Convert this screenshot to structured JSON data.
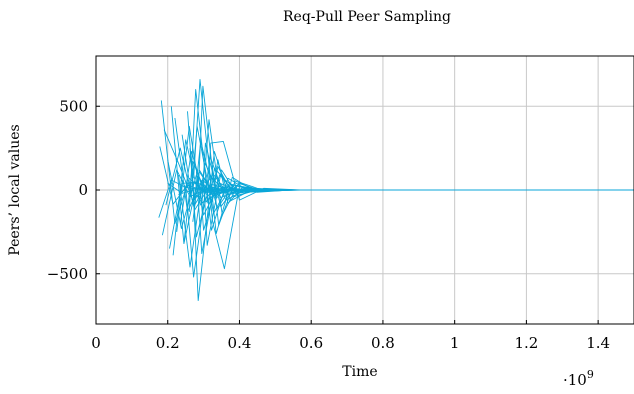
{
  "chart_data": {
    "type": "line",
    "title": "Req-Pull Peer Sampling",
    "xlabel": "Time",
    "ylabel": "Peers’ local values",
    "x_scale_label": "·10",
    "x_scale_exponent": "9",
    "xlim": [
      0,
      1500000000
    ],
    "ylim": [
      -800,
      800
    ],
    "x_ticks": [
      0,
      200000000,
      400000000,
      600000000,
      800000000,
      1000000000,
      1200000000,
      1400000000
    ],
    "x_tick_labels": [
      "0",
      "0.2",
      "0.4",
      "0.6",
      "0.8",
      "1",
      "1.2",
      "1.4"
    ],
    "y_ticks": [
      -500,
      0,
      500
    ],
    "y_tick_labels": [
      "−500",
      "0",
      "500"
    ],
    "grid": true,
    "legend": "none",
    "line_color": "#0aa6d8",
    "series": [
      {
        "points": [
          [
            175000000,
            -165
          ],
          [
            210000000,
            60
          ],
          [
            250000000,
            15
          ],
          [
            300000000,
            2
          ],
          [
            350000000,
            -1
          ],
          [
            450000000,
            0
          ],
          [
            1500000000,
            0
          ]
        ]
      },
      {
        "points": [
          [
            178000000,
            260
          ],
          [
            215000000,
            -85
          ],
          [
            255000000,
            30
          ],
          [
            300000000,
            -5
          ],
          [
            360000000,
            2
          ],
          [
            460000000,
            0
          ],
          [
            1500000000,
            0
          ]
        ]
      },
      {
        "points": [
          [
            182000000,
            535
          ],
          [
            220000000,
            -200
          ],
          [
            260000000,
            70
          ],
          [
            305000000,
            -15
          ],
          [
            370000000,
            3
          ],
          [
            470000000,
            0
          ],
          [
            1500000000,
            0
          ]
        ]
      },
      {
        "points": [
          [
            185000000,
            -270
          ],
          [
            225000000,
            120
          ],
          [
            262000000,
            -40
          ],
          [
            310000000,
            10
          ],
          [
            360000000,
            -2
          ],
          [
            450000000,
            0
          ],
          [
            1500000000,
            0
          ]
        ]
      },
      {
        "points": [
          [
            190000000,
            360
          ],
          [
            230000000,
            160
          ],
          [
            270000000,
            -60
          ],
          [
            315000000,
            20
          ],
          [
            375000000,
            -4
          ],
          [
            470000000,
            0
          ],
          [
            1500000000,
            0
          ]
        ]
      },
      {
        "points": [
          [
            195000000,
            -90
          ],
          [
            235000000,
            250
          ],
          [
            275000000,
            -120
          ],
          [
            320000000,
            35
          ],
          [
            380000000,
            -6
          ],
          [
            480000000,
            0
          ],
          [
            1500000000,
            0
          ]
        ]
      },
      {
        "points": [
          [
            200000000,
            180
          ],
          [
            238000000,
            -230
          ],
          [
            280000000,
            90
          ],
          [
            322000000,
            -25
          ],
          [
            385000000,
            5
          ],
          [
            470000000,
            0
          ],
          [
            1500000000,
            0
          ]
        ]
      },
      {
        "points": [
          [
            205000000,
            -350
          ],
          [
            240000000,
            40
          ],
          [
            282000000,
            45
          ],
          [
            325000000,
            -12
          ],
          [
            390000000,
            2
          ],
          [
            460000000,
            0
          ],
          [
            1500000000,
            0
          ]
        ]
      },
      {
        "points": [
          [
            210000000,
            500
          ],
          [
            245000000,
            -320
          ],
          [
            288000000,
            110
          ],
          [
            330000000,
            -30
          ],
          [
            395000000,
            4
          ],
          [
            480000000,
            0
          ],
          [
            1500000000,
            0
          ]
        ]
      },
      {
        "points": [
          [
            215000000,
            -390
          ],
          [
            250000000,
            300
          ],
          [
            292000000,
            -90
          ],
          [
            335000000,
            25
          ],
          [
            400000000,
            -3
          ],
          [
            490000000,
            0
          ],
          [
            1500000000,
            0
          ]
        ]
      },
      {
        "points": [
          [
            220000000,
            430
          ],
          [
            255000000,
            -130
          ],
          [
            296000000,
            60
          ],
          [
            340000000,
            -18
          ],
          [
            400000000,
            2
          ],
          [
            480000000,
            0
          ],
          [
            1500000000,
            0
          ]
        ]
      },
      {
        "points": [
          [
            225000000,
            -250
          ],
          [
            260000000,
            380
          ],
          [
            300000000,
            -150
          ],
          [
            345000000,
            40
          ],
          [
            405000000,
            -8
          ],
          [
            490000000,
            0
          ],
          [
            1500000000,
            0
          ]
        ]
      },
      {
        "points": [
          [
            230000000,
            90
          ],
          [
            262000000,
            -460
          ],
          [
            304000000,
            160
          ],
          [
            348000000,
            -45
          ],
          [
            410000000,
            8
          ],
          [
            500000000,
            0
          ],
          [
            1500000000,
            0
          ]
        ]
      },
      {
        "points": [
          [
            235000000,
            -200
          ],
          [
            266000000,
            230
          ],
          [
            308000000,
            -70
          ],
          [
            352000000,
            18
          ],
          [
            415000000,
            -2
          ],
          [
            490000000,
            0
          ],
          [
            1500000000,
            0
          ]
        ]
      },
      {
        "points": [
          [
            240000000,
            330
          ],
          [
            268000000,
            -60
          ],
          [
            310000000,
            25
          ],
          [
            355000000,
            -6
          ],
          [
            420000000,
            1
          ],
          [
            480000000,
            0
          ],
          [
            1500000000,
            0
          ]
        ]
      },
      {
        "points": [
          [
            245000000,
            -320
          ],
          [
            270000000,
            170
          ],
          [
            314000000,
            -55
          ],
          [
            358000000,
            15
          ],
          [
            420000000,
            -2
          ],
          [
            500000000,
            0
          ],
          [
            1500000000,
            0
          ]
        ]
      },
      {
        "points": [
          [
            250000000,
            20
          ],
          [
            272000000,
            -520
          ],
          [
            318000000,
            200
          ],
          [
            362000000,
            -60
          ],
          [
            425000000,
            10
          ],
          [
            510000000,
            0
          ],
          [
            1500000000,
            0
          ]
        ]
      },
      {
        "points": [
          [
            255000000,
            470
          ],
          [
            275000000,
            -90
          ],
          [
            320000000,
            80
          ],
          [
            365000000,
            -20
          ],
          [
            430000000,
            3
          ],
          [
            500000000,
            0
          ],
          [
            1500000000,
            0
          ]
        ]
      },
      {
        "points": [
          [
            260000000,
            -130
          ],
          [
            278000000,
            600
          ],
          [
            322000000,
            -240
          ],
          [
            368000000,
            70
          ],
          [
            432000000,
            -12
          ],
          [
            520000000,
            0
          ],
          [
            1500000000,
            0
          ]
        ]
      },
      {
        "points": [
          [
            262000000,
            250
          ],
          [
            280000000,
            -280
          ],
          [
            325000000,
            100
          ],
          [
            370000000,
            -28
          ],
          [
            435000000,
            5
          ],
          [
            510000000,
            0
          ],
          [
            1500000000,
            0
          ]
        ]
      },
      {
        "points": [
          [
            265000000,
            -40
          ],
          [
            282000000,
            380
          ],
          [
            328000000,
            -140
          ],
          [
            372000000,
            38
          ],
          [
            440000000,
            -6
          ],
          [
            520000000,
            0
          ],
          [
            1500000000,
            0
          ]
        ]
      },
      {
        "points": [
          [
            268000000,
            140
          ],
          [
            285000000,
            -660
          ],
          [
            330000000,
            230
          ],
          [
            375000000,
            -65
          ],
          [
            442000000,
            10
          ],
          [
            530000000,
            0
          ],
          [
            1500000000,
            0
          ]
        ]
      },
      {
        "points": [
          [
            270000000,
            -190
          ],
          [
            288000000,
            120
          ],
          [
            332000000,
            -35
          ],
          [
            378000000,
            10
          ],
          [
            445000000,
            -1
          ],
          [
            510000000,
            0
          ],
          [
            1500000000,
            0
          ]
        ]
      },
      {
        "points": [
          [
            272000000,
            70
          ],
          [
            290000000,
            660
          ],
          [
            335000000,
            -260
          ],
          [
            380000000,
            75
          ],
          [
            448000000,
            -14
          ],
          [
            540000000,
            0
          ],
          [
            1500000000,
            0
          ]
        ]
      },
      {
        "points": [
          [
            275000000,
            -60
          ],
          [
            292000000,
            290
          ],
          [
            338000000,
            -110
          ],
          [
            382000000,
            30
          ],
          [
            450000000,
            -4
          ],
          [
            530000000,
            0
          ],
          [
            1500000000,
            0
          ]
        ]
      },
      {
        "points": [
          [
            280000000,
            110
          ],
          [
            295000000,
            -380
          ],
          [
            340000000,
            140
          ],
          [
            385000000,
            -40
          ],
          [
            452000000,
            7
          ],
          [
            540000000,
            0
          ],
          [
            1500000000,
            0
          ]
        ]
      },
      {
        "points": [
          [
            285000000,
            -20
          ],
          [
            298000000,
            620
          ],
          [
            342000000,
            -210
          ],
          [
            388000000,
            55
          ],
          [
            455000000,
            -9
          ],
          [
            550000000,
            0
          ],
          [
            1500000000,
            0
          ]
        ]
      },
      {
        "points": [
          [
            290000000,
            40
          ],
          [
            300000000,
            -240
          ],
          [
            345000000,
            90
          ],
          [
            390000000,
            -22
          ],
          [
            458000000,
            4
          ],
          [
            540000000,
            0
          ],
          [
            1500000000,
            0
          ]
        ]
      },
      {
        "points": [
          [
            295000000,
            -100
          ],
          [
            305000000,
            280
          ],
          [
            348000000,
            -100
          ],
          [
            392000000,
            28
          ],
          [
            460000000,
            -5
          ],
          [
            550000000,
            0
          ],
          [
            1500000000,
            0
          ]
        ]
      },
      {
        "points": [
          [
            300000000,
            60
          ],
          [
            310000000,
            -330
          ],
          [
            350000000,
            120
          ],
          [
            395000000,
            -32
          ],
          [
            462000000,
            6
          ],
          [
            560000000,
            0
          ],
          [
            1500000000,
            0
          ]
        ]
      },
      {
        "points": [
          [
            305000000,
            150
          ],
          [
            315000000,
            420
          ],
          [
            352000000,
            -150
          ],
          [
            398000000,
            40
          ],
          [
            465000000,
            -7
          ],
          [
            560000000,
            0
          ],
          [
            1500000000,
            0
          ]
        ]
      },
      {
        "points": [
          [
            310000000,
            -80
          ],
          [
            320000000,
            280
          ],
          [
            355000000,
            290
          ],
          [
            400000000,
            -60
          ],
          [
            468000000,
            10
          ],
          [
            570000000,
            0
          ],
          [
            1500000000,
            0
          ]
        ]
      },
      {
        "points": [
          [
            315000000,
            30
          ],
          [
            325000000,
            -190
          ],
          [
            358000000,
            -470
          ],
          [
            402000000,
            45
          ],
          [
            470000000,
            -5
          ],
          [
            570000000,
            0
          ],
          [
            1500000000,
            0
          ]
        ]
      },
      {
        "points": [
          [
            320000000,
            -30
          ],
          [
            330000000,
            130
          ],
          [
            360000000,
            60
          ],
          [
            405000000,
            -15
          ],
          [
            472000000,
            3
          ],
          [
            560000000,
            0
          ],
          [
            1500000000,
            0
          ]
        ]
      },
      {
        "points": [
          [
            325000000,
            10
          ],
          [
            335000000,
            -50
          ],
          [
            365000000,
            25
          ],
          [
            408000000,
            -8
          ],
          [
            475000000,
            1
          ],
          [
            560000000,
            0
          ],
          [
            1500000000,
            0
          ]
        ]
      },
      {
        "points": [
          [
            330000000,
            50
          ],
          [
            340000000,
            180
          ],
          [
            368000000,
            -80
          ],
          [
            410000000,
            20
          ],
          [
            478000000,
            -3
          ],
          [
            570000000,
            0
          ],
          [
            1500000000,
            0
          ]
        ]
      },
      {
        "points": [
          [
            200000000,
            40
          ],
          [
            240000000,
            -20
          ],
          [
            290000000,
            10
          ],
          [
            340000000,
            -3
          ],
          [
            420000000,
            0
          ],
          [
            1500000000,
            0
          ]
        ]
      },
      {
        "points": [
          [
            230000000,
            -30
          ],
          [
            270000000,
            50
          ],
          [
            310000000,
            -15
          ],
          [
            360000000,
            4
          ],
          [
            440000000,
            0
          ],
          [
            1500000000,
            0
          ]
        ]
      }
    ]
  }
}
